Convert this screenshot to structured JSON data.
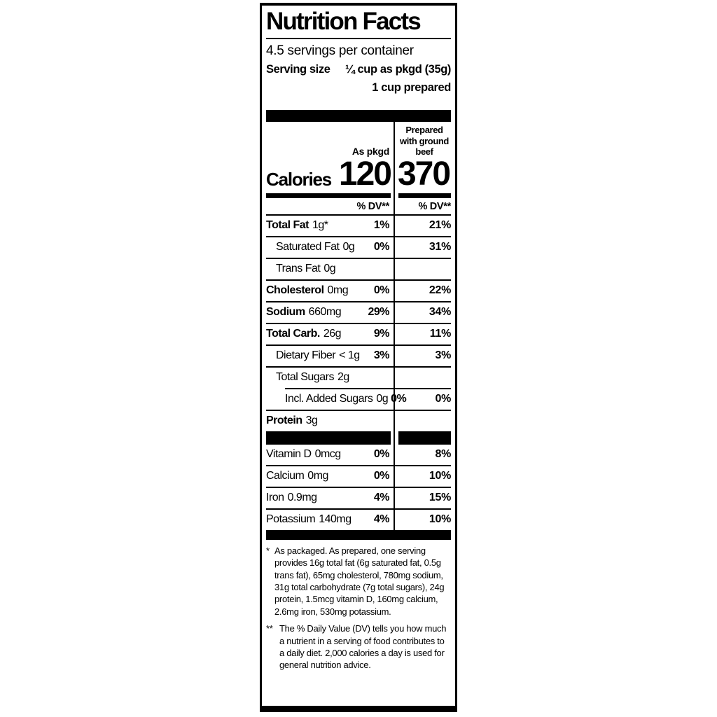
{
  "label": {
    "title": "Nutrition Facts",
    "servings_per_container": "4.5 servings per container",
    "serving_size_label": "Serving size",
    "serving_size_value": "¼ cup as pkgd (35g)",
    "serving_size_prepared": "1 cup prepared",
    "columns": {
      "left_header": "As pkgd",
      "right_header": "Prepared with ground beef"
    },
    "calories": {
      "label": "Calories",
      "as_pkgd": "120",
      "prepared": "370"
    },
    "dv_header_left": "% DV**",
    "dv_header_right": "% DV**",
    "rows": [
      {
        "name": "Total Fat",
        "amount": "1g*",
        "pkgd_dv": "1%",
        "prepared_dv": "21%"
      },
      {
        "name": "Saturated Fat",
        "amount": "0g",
        "pkgd_dv": "0%",
        "prepared_dv": "31%"
      },
      {
        "name": "Trans Fat",
        "amount": "0g",
        "pkgd_dv": "",
        "prepared_dv": ""
      },
      {
        "name": "Cholesterol",
        "amount": "0mg",
        "pkgd_dv": "0%",
        "prepared_dv": "22%"
      },
      {
        "name": "Sodium",
        "amount": "660mg",
        "pkgd_dv": "29%",
        "prepared_dv": "34%"
      },
      {
        "name": "Total Carb.",
        "amount": "26g",
        "pkgd_dv": "9%",
        "prepared_dv": "11%"
      },
      {
        "name": "Dietary Fiber",
        "amount": "< 1g",
        "pkgd_dv": "3%",
        "prepared_dv": "3%"
      },
      {
        "name": "Total Sugars",
        "amount": "2g",
        "pkgd_dv": "",
        "prepared_dv": ""
      },
      {
        "name": "Incl. Added Sugars",
        "amount": "0g",
        "pkgd_dv": "0%",
        "prepared_dv": "0%"
      },
      {
        "name": "Protein",
        "amount": "3g",
        "pkgd_dv": "",
        "prepared_dv": ""
      }
    ],
    "vitamins": [
      {
        "name": "Vitamin D",
        "amount": "0mcg",
        "pkgd_dv": "0%",
        "prepared_dv": "8%"
      },
      {
        "name": "Calcium",
        "amount": "0mg",
        "pkgd_dv": "0%",
        "prepared_dv": "10%"
      },
      {
        "name": "Iron",
        "amount": "0.9mg",
        "pkgd_dv": "4%",
        "prepared_dv": "15%"
      },
      {
        "name": "Potassium",
        "amount": "140mg",
        "pkgd_dv": "4%",
        "prepared_dv": "10%"
      }
    ],
    "footnotes": {
      "note1_marker": "*",
      "note1": "As packaged. As prepared, one serving provides 16g total fat (6g saturated fat, 0.5g trans fat), 65mg cholesterol, 780mg sodium, 31g total carbohydrate (7g total sugars), 24g protein, 1.5mcg vitamin D, 160mg calcium, 2.6mg iron, 530mg potassium.",
      "note2_marker": "**",
      "note2": "The % Daily Value (DV) tells you how much a nutrient in a serving of food contributes to a daily diet. 2,000 calories a day is used for general nutrition advice."
    },
    "colors": {
      "ink": "#000000",
      "paper": "#ffffff"
    }
  }
}
